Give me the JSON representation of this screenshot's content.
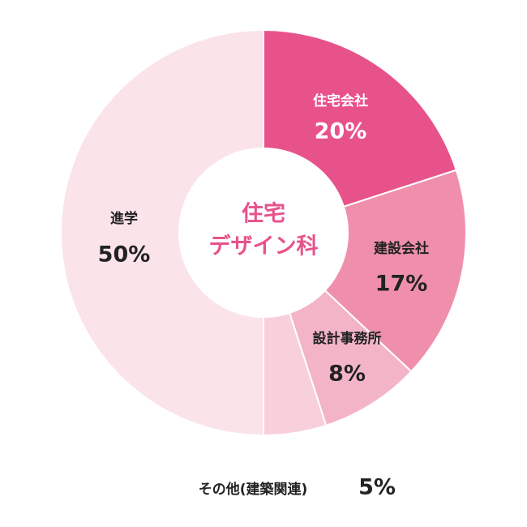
{
  "chart_data": {
    "type": "pie",
    "title": [
      "住宅",
      "デザイン科"
    ],
    "categories": [
      "住宅会社",
      "建設会社",
      "設計事務所",
      "その他(建築関連)",
      "進学"
    ],
    "values": [
      20,
      17,
      8,
      5,
      50
    ],
    "value_labels": [
      "20%",
      "17%",
      "8%",
      "5%",
      "50%"
    ],
    "colors": [
      "#e8528a",
      "#ef8fac",
      "#f4b4c8",
      "#f8d0dc",
      "#fbe3ea"
    ]
  }
}
